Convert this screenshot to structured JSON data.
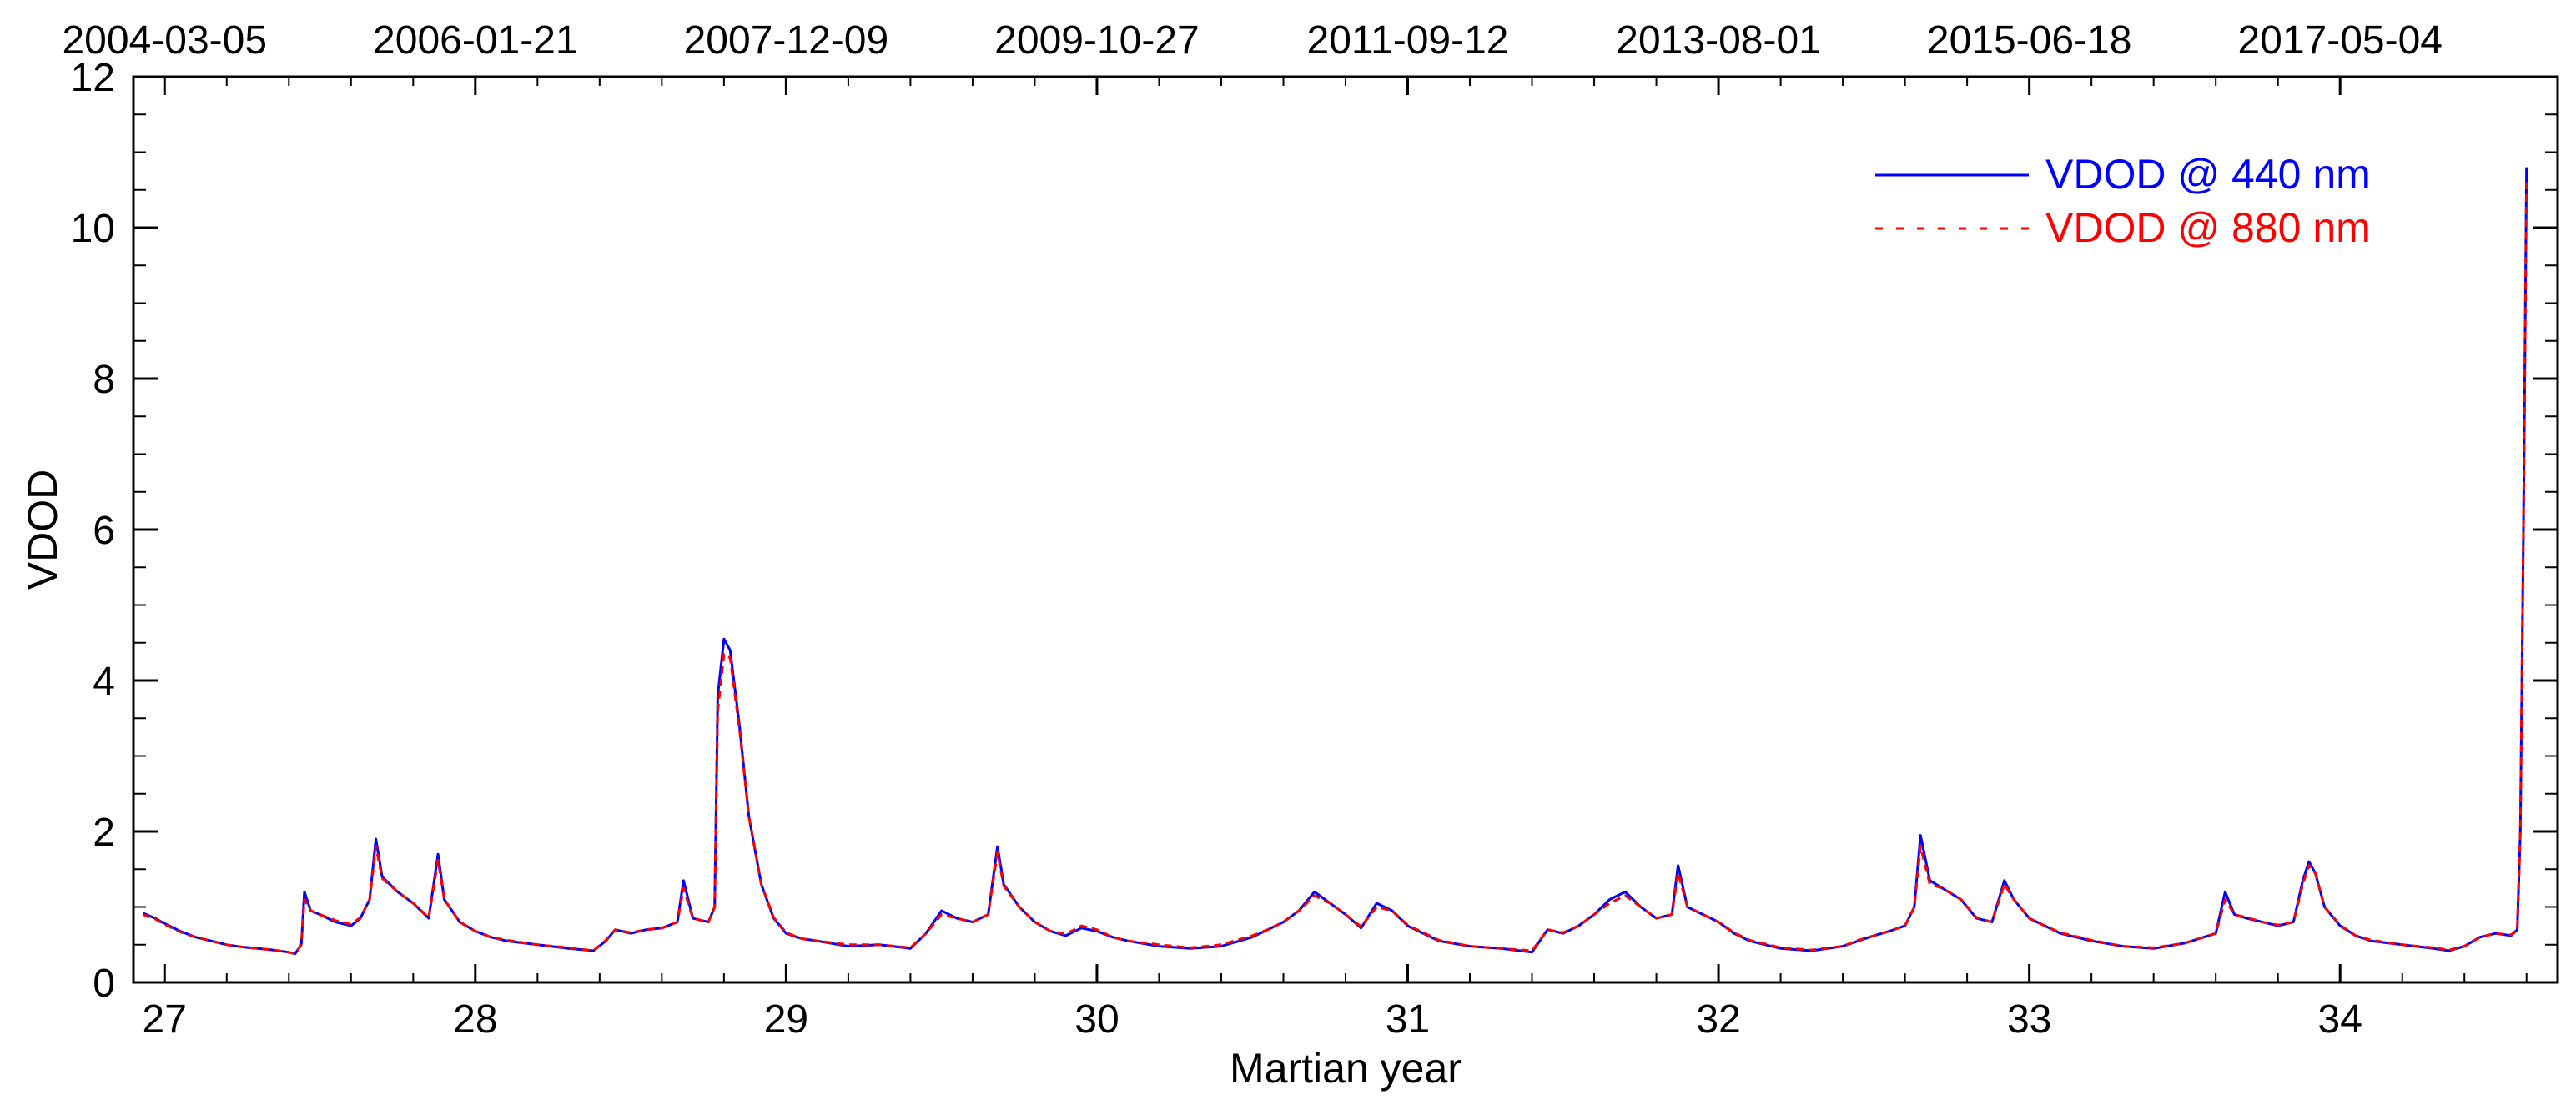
{
  "colors": {
    "series_440": "#0000ff",
    "series_880": "#ff0000",
    "axis": "#000000",
    "background": "#ffffff"
  },
  "chart_data": {
    "type": "line",
    "xlabel": "Martian year",
    "ylabel": "VDOD",
    "xlim": [
      26.9,
      34.7
    ],
    "ylim": [
      0,
      12
    ],
    "x_ticks": [
      27,
      28,
      29,
      30,
      31,
      32,
      33,
      34
    ],
    "y_ticks": [
      0,
      2,
      4,
      6,
      8,
      10,
      12
    ],
    "grid": false,
    "legend_position": "top-right",
    "top_axis_labels": [
      {
        "x": 27.0,
        "label": "2004-03-05"
      },
      {
        "x": 28.0,
        "label": "2006-01-21"
      },
      {
        "x": 29.0,
        "label": "2007-12-09"
      },
      {
        "x": 30.0,
        "label": "2009-10-27"
      },
      {
        "x": 31.0,
        "label": "2011-09-12"
      },
      {
        "x": 32.0,
        "label": "2013-08-01"
      },
      {
        "x": 33.0,
        "label": "2015-06-18"
      },
      {
        "x": 34.0,
        "label": "2017-05-04"
      }
    ],
    "series": [
      {
        "name": "VDOD @ 440 nm",
        "style": "solid",
        "points": [
          [
            26.93,
            0.92
          ],
          [
            26.97,
            0.85
          ],
          [
            27.0,
            0.78
          ],
          [
            27.05,
            0.68
          ],
          [
            27.1,
            0.6
          ],
          [
            27.15,
            0.55
          ],
          [
            27.2,
            0.5
          ],
          [
            27.25,
            0.47
          ],
          [
            27.3,
            0.45
          ],
          [
            27.35,
            0.43
          ],
          [
            27.4,
            0.4
          ],
          [
            27.42,
            0.38
          ],
          [
            27.44,
            0.5
          ],
          [
            27.45,
            1.2
          ],
          [
            27.47,
            0.95
          ],
          [
            27.5,
            0.9
          ],
          [
            27.55,
            0.8
          ],
          [
            27.6,
            0.75
          ],
          [
            27.63,
            0.85
          ],
          [
            27.66,
            1.1
          ],
          [
            27.68,
            1.9
          ],
          [
            27.7,
            1.4
          ],
          [
            27.75,
            1.2
          ],
          [
            27.8,
            1.05
          ],
          [
            27.85,
            0.85
          ],
          [
            27.88,
            1.7
          ],
          [
            27.9,
            1.1
          ],
          [
            27.95,
            0.8
          ],
          [
            28.0,
            0.68
          ],
          [
            28.05,
            0.6
          ],
          [
            28.1,
            0.55
          ],
          [
            28.2,
            0.5
          ],
          [
            28.3,
            0.45
          ],
          [
            28.38,
            0.42
          ],
          [
            28.42,
            0.55
          ],
          [
            28.45,
            0.7
          ],
          [
            28.5,
            0.65
          ],
          [
            28.55,
            0.7
          ],
          [
            28.6,
            0.72
          ],
          [
            28.65,
            0.8
          ],
          [
            28.67,
            1.35
          ],
          [
            28.7,
            0.85
          ],
          [
            28.75,
            0.8
          ],
          [
            28.77,
            1.0
          ],
          [
            28.78,
            3.8
          ],
          [
            28.8,
            4.55
          ],
          [
            28.82,
            4.4
          ],
          [
            28.85,
            3.4
          ],
          [
            28.88,
            2.2
          ],
          [
            28.92,
            1.3
          ],
          [
            28.96,
            0.85
          ],
          [
            29.0,
            0.65
          ],
          [
            29.05,
            0.58
          ],
          [
            29.1,
            0.55
          ],
          [
            29.2,
            0.48
          ],
          [
            29.3,
            0.5
          ],
          [
            29.4,
            0.45
          ],
          [
            29.45,
            0.65
          ],
          [
            29.5,
            0.95
          ],
          [
            29.55,
            0.85
          ],
          [
            29.6,
            0.8
          ],
          [
            29.65,
            0.9
          ],
          [
            29.68,
            1.8
          ],
          [
            29.7,
            1.3
          ],
          [
            29.75,
            1.0
          ],
          [
            29.8,
            0.8
          ],
          [
            29.85,
            0.68
          ],
          [
            29.9,
            0.62
          ],
          [
            29.95,
            0.72
          ],
          [
            30.0,
            0.68
          ],
          [
            30.05,
            0.6
          ],
          [
            30.1,
            0.55
          ],
          [
            30.2,
            0.48
          ],
          [
            30.3,
            0.45
          ],
          [
            30.4,
            0.48
          ],
          [
            30.5,
            0.6
          ],
          [
            30.55,
            0.7
          ],
          [
            30.6,
            0.8
          ],
          [
            30.65,
            0.95
          ],
          [
            30.7,
            1.2
          ],
          [
            30.75,
            1.05
          ],
          [
            30.8,
            0.9
          ],
          [
            30.85,
            0.72
          ],
          [
            30.9,
            1.05
          ],
          [
            30.95,
            0.95
          ],
          [
            31.0,
            0.75
          ],
          [
            31.1,
            0.55
          ],
          [
            31.2,
            0.48
          ],
          [
            31.3,
            0.45
          ],
          [
            31.4,
            0.4
          ],
          [
            31.45,
            0.7
          ],
          [
            31.5,
            0.65
          ],
          [
            31.55,
            0.75
          ],
          [
            31.6,
            0.9
          ],
          [
            31.65,
            1.1
          ],
          [
            31.7,
            1.2
          ],
          [
            31.75,
            1.0
          ],
          [
            31.8,
            0.85
          ],
          [
            31.85,
            0.9
          ],
          [
            31.87,
            1.55
          ],
          [
            31.9,
            1.0
          ],
          [
            31.95,
            0.9
          ],
          [
            32.0,
            0.8
          ],
          [
            32.05,
            0.65
          ],
          [
            32.1,
            0.55
          ],
          [
            32.2,
            0.45
          ],
          [
            32.3,
            0.42
          ],
          [
            32.4,
            0.48
          ],
          [
            32.45,
            0.55
          ],
          [
            32.5,
            0.62
          ],
          [
            32.55,
            0.68
          ],
          [
            32.6,
            0.75
          ],
          [
            32.63,
            1.0
          ],
          [
            32.65,
            1.95
          ],
          [
            32.68,
            1.35
          ],
          [
            32.72,
            1.25
          ],
          [
            32.78,
            1.1
          ],
          [
            32.83,
            0.85
          ],
          [
            32.88,
            0.8
          ],
          [
            32.92,
            1.35
          ],
          [
            32.95,
            1.1
          ],
          [
            33.0,
            0.85
          ],
          [
            33.05,
            0.75
          ],
          [
            33.1,
            0.65
          ],
          [
            33.2,
            0.55
          ],
          [
            33.3,
            0.48
          ],
          [
            33.4,
            0.45
          ],
          [
            33.5,
            0.52
          ],
          [
            33.6,
            0.65
          ],
          [
            33.63,
            1.2
          ],
          [
            33.66,
            0.9
          ],
          [
            33.7,
            0.85
          ],
          [
            33.75,
            0.8
          ],
          [
            33.8,
            0.75
          ],
          [
            33.85,
            0.8
          ],
          [
            33.88,
            1.35
          ],
          [
            33.9,
            1.6
          ],
          [
            33.92,
            1.45
          ],
          [
            33.95,
            1.0
          ],
          [
            34.0,
            0.75
          ],
          [
            34.05,
            0.62
          ],
          [
            34.1,
            0.55
          ],
          [
            34.2,
            0.5
          ],
          [
            34.3,
            0.45
          ],
          [
            34.35,
            0.42
          ],
          [
            34.4,
            0.48
          ],
          [
            34.45,
            0.6
          ],
          [
            34.5,
            0.65
          ],
          [
            34.55,
            0.62
          ],
          [
            34.57,
            0.7
          ],
          [
            34.58,
            2.0
          ],
          [
            34.59,
            6.0
          ],
          [
            34.6,
            10.8
          ]
        ]
      },
      {
        "name": "VDOD @ 880 nm",
        "style": "dashed",
        "points": [
          [
            26.93,
            0.9
          ],
          [
            26.97,
            0.84
          ],
          [
            27.0,
            0.77
          ],
          [
            27.05,
            0.67
          ],
          [
            27.1,
            0.6
          ],
          [
            27.15,
            0.55
          ],
          [
            27.2,
            0.5
          ],
          [
            27.25,
            0.47
          ],
          [
            27.3,
            0.45
          ],
          [
            27.35,
            0.43
          ],
          [
            27.4,
            0.4
          ],
          [
            27.42,
            0.38
          ],
          [
            27.44,
            0.5
          ],
          [
            27.45,
            1.1
          ],
          [
            27.47,
            0.95
          ],
          [
            27.5,
            0.9
          ],
          [
            27.55,
            0.82
          ],
          [
            27.6,
            0.77
          ],
          [
            27.63,
            0.86
          ],
          [
            27.66,
            1.1
          ],
          [
            27.68,
            1.8
          ],
          [
            27.7,
            1.38
          ],
          [
            27.75,
            1.2
          ],
          [
            27.8,
            1.05
          ],
          [
            27.85,
            0.86
          ],
          [
            27.88,
            1.62
          ],
          [
            27.9,
            1.1
          ],
          [
            27.95,
            0.8
          ],
          [
            28.0,
            0.68
          ],
          [
            28.05,
            0.6
          ],
          [
            28.1,
            0.56
          ],
          [
            28.2,
            0.5
          ],
          [
            28.3,
            0.46
          ],
          [
            28.38,
            0.42
          ],
          [
            28.42,
            0.56
          ],
          [
            28.45,
            0.7
          ],
          [
            28.5,
            0.66
          ],
          [
            28.55,
            0.7
          ],
          [
            28.6,
            0.72
          ],
          [
            28.65,
            0.8
          ],
          [
            28.67,
            1.25
          ],
          [
            28.7,
            0.85
          ],
          [
            28.75,
            0.8
          ],
          [
            28.77,
            1.0
          ],
          [
            28.78,
            3.6
          ],
          [
            28.8,
            4.35
          ],
          [
            28.82,
            4.3
          ],
          [
            28.85,
            3.35
          ],
          [
            28.88,
            2.2
          ],
          [
            28.92,
            1.3
          ],
          [
            28.96,
            0.86
          ],
          [
            29.0,
            0.66
          ],
          [
            29.05,
            0.58
          ],
          [
            29.1,
            0.55
          ],
          [
            29.2,
            0.5
          ],
          [
            29.3,
            0.5
          ],
          [
            29.4,
            0.46
          ],
          [
            29.45,
            0.65
          ],
          [
            29.5,
            0.9
          ],
          [
            29.55,
            0.85
          ],
          [
            29.6,
            0.8
          ],
          [
            29.65,
            0.9
          ],
          [
            29.68,
            1.72
          ],
          [
            29.7,
            1.28
          ],
          [
            29.75,
            1.0
          ],
          [
            29.8,
            0.8
          ],
          [
            29.85,
            0.68
          ],
          [
            29.9,
            0.64
          ],
          [
            29.95,
            0.75
          ],
          [
            30.0,
            0.7
          ],
          [
            30.05,
            0.6
          ],
          [
            30.1,
            0.55
          ],
          [
            30.2,
            0.5
          ],
          [
            30.3,
            0.46
          ],
          [
            30.4,
            0.5
          ],
          [
            30.5,
            0.62
          ],
          [
            30.55,
            0.7
          ],
          [
            30.6,
            0.8
          ],
          [
            30.65,
            0.95
          ],
          [
            30.7,
            1.15
          ],
          [
            30.75,
            1.05
          ],
          [
            30.8,
            0.9
          ],
          [
            30.85,
            0.74
          ],
          [
            30.9,
            1.0
          ],
          [
            30.95,
            0.95
          ],
          [
            31.0,
            0.76
          ],
          [
            31.1,
            0.56
          ],
          [
            31.2,
            0.48
          ],
          [
            31.3,
            0.45
          ],
          [
            31.4,
            0.42
          ],
          [
            31.45,
            0.7
          ],
          [
            31.5,
            0.66
          ],
          [
            31.55,
            0.75
          ],
          [
            31.6,
            0.9
          ],
          [
            31.65,
            1.05
          ],
          [
            31.7,
            1.15
          ],
          [
            31.75,
            1.0
          ],
          [
            31.8,
            0.85
          ],
          [
            31.85,
            0.9
          ],
          [
            31.87,
            1.45
          ],
          [
            31.9,
            1.0
          ],
          [
            31.95,
            0.9
          ],
          [
            32.0,
            0.8
          ],
          [
            32.05,
            0.66
          ],
          [
            32.1,
            0.56
          ],
          [
            32.2,
            0.46
          ],
          [
            32.3,
            0.43
          ],
          [
            32.4,
            0.48
          ],
          [
            32.45,
            0.56
          ],
          [
            32.5,
            0.62
          ],
          [
            32.55,
            0.68
          ],
          [
            32.6,
            0.75
          ],
          [
            32.63,
            1.0
          ],
          [
            32.65,
            1.8
          ],
          [
            32.68,
            1.3
          ],
          [
            32.72,
            1.25
          ],
          [
            32.78,
            1.1
          ],
          [
            32.83,
            0.86
          ],
          [
            32.88,
            0.8
          ],
          [
            32.92,
            1.3
          ],
          [
            32.95,
            1.1
          ],
          [
            33.0,
            0.85
          ],
          [
            33.05,
            0.75
          ],
          [
            33.1,
            0.66
          ],
          [
            33.2,
            0.56
          ],
          [
            33.3,
            0.48
          ],
          [
            33.4,
            0.46
          ],
          [
            33.5,
            0.52
          ],
          [
            33.6,
            0.65
          ],
          [
            33.63,
            1.1
          ],
          [
            33.66,
            0.9
          ],
          [
            33.7,
            0.86
          ],
          [
            33.75,
            0.8
          ],
          [
            33.8,
            0.76
          ],
          [
            33.85,
            0.8
          ],
          [
            33.88,
            1.3
          ],
          [
            33.9,
            1.55
          ],
          [
            33.92,
            1.45
          ],
          [
            33.95,
            1.0
          ],
          [
            34.0,
            0.76
          ],
          [
            34.05,
            0.62
          ],
          [
            34.1,
            0.56
          ],
          [
            34.2,
            0.5
          ],
          [
            34.3,
            0.46
          ],
          [
            34.35,
            0.43
          ],
          [
            34.4,
            0.48
          ],
          [
            34.45,
            0.6
          ],
          [
            34.5,
            0.65
          ],
          [
            34.55,
            0.63
          ],
          [
            34.57,
            0.7
          ],
          [
            34.58,
            2.0
          ],
          [
            34.59,
            6.0
          ],
          [
            34.6,
            10.6
          ]
        ]
      }
    ]
  }
}
